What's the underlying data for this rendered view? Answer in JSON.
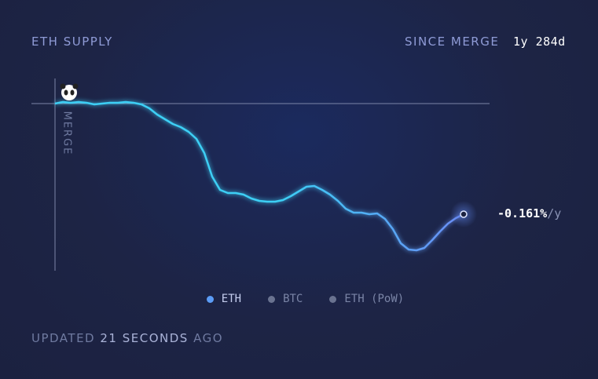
{
  "chart_data": {
    "type": "line",
    "title": "ETH SUPPLY",
    "period_label": "SINCE MERGE",
    "period_value": "1y 284d",
    "merge_label": "MERGE",
    "rate_value": "-0.161%",
    "rate_unit": "/y",
    "ylim": [
      -0.426,
      0.064
    ],
    "series": [
      {
        "color": "#3ccff5",
        "end_color": "#6a8cf5",
        "values": [
          0,
          0.004,
          0.002,
          0.004,
          0.002,
          -0.002,
          0,
          0.002,
          0.002,
          0.004,
          0.002,
          -0.002,
          -0.012,
          -0.028,
          -0.04,
          -0.052,
          -0.06,
          -0.072,
          -0.09,
          -0.126,
          -0.186,
          -0.22,
          -0.228,
          -0.228,
          -0.232,
          -0.242,
          -0.248,
          -0.25,
          -0.25,
          -0.246,
          -0.236,
          -0.224,
          -0.212,
          -0.21,
          -0.22,
          -0.232,
          -0.248,
          -0.268,
          -0.278,
          -0.278,
          -0.282,
          -0.28,
          -0.294,
          -0.32,
          -0.356,
          -0.372,
          -0.374,
          -0.368,
          -0.348,
          -0.326,
          -0.306,
          -0.292,
          -0.282
        ]
      }
    ],
    "legend": [
      {
        "name": "ETH",
        "color": "#5b9cf6"
      },
      {
        "name": "BTC",
        "color": "#6a7390"
      },
      {
        "name": "ETH (PoW)",
        "color": "#6a7390"
      }
    ],
    "footer": {
      "prefix": "UPDATED",
      "time": "21 SECONDS",
      "suffix": "AGO"
    }
  }
}
